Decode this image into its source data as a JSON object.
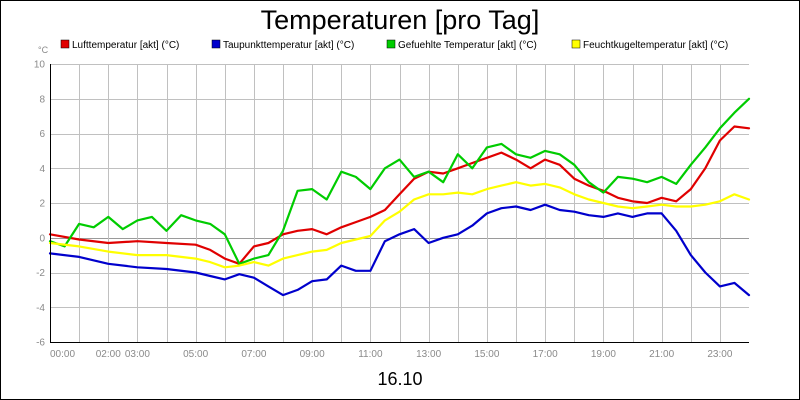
{
  "chart_data": {
    "type": "line",
    "title": "Temperaturen [pro Tag]",
    "y_unit": "°C",
    "date_label": "16.10",
    "ylim": [
      -6,
      10
    ],
    "xlim": [
      0,
      24
    ],
    "y_ticks": [
      -6,
      -4,
      -2,
      0,
      2,
      4,
      6,
      8,
      10
    ],
    "y_tick_labels": [
      "-6",
      "-4",
      "-2",
      "0",
      "2",
      "4",
      "6",
      "8",
      "10"
    ],
    "x_ticks": [
      0,
      2,
      3,
      5,
      7,
      9,
      11,
      13,
      15,
      17,
      19,
      21,
      23
    ],
    "x_tick_labels": [
      "00:00",
      "02:00",
      "03:00",
      "05:00",
      "07:00",
      "09:00",
      "11:00",
      "13:00",
      "15:00",
      "17:00",
      "19:00",
      "21:00",
      "23:00"
    ],
    "grid": true,
    "legend_position": "top",
    "series": [
      {
        "name": "Lufttemperatur [akt] (°C)",
        "color": "#e00000",
        "x": [
          0,
          1,
          2,
          3,
          4,
          5,
          5.5,
          6,
          6.5,
          7,
          7.5,
          8,
          8.5,
          9,
          9.5,
          10,
          10.5,
          11,
          11.5,
          12,
          12.5,
          13,
          13.5,
          14,
          14.5,
          15,
          15.5,
          16,
          16.5,
          17,
          17.5,
          18,
          18.5,
          19,
          19.5,
          20,
          20.5,
          21,
          21.5,
          22,
          22.5,
          23,
          23.5,
          24
        ],
        "y": [
          0.2,
          -0.1,
          -0.3,
          -0.2,
          -0.3,
          -0.4,
          -0.7,
          -1.2,
          -1.5,
          -0.5,
          -0.3,
          0.2,
          0.4,
          0.5,
          0.2,
          0.6,
          0.9,
          1.2,
          1.6,
          2.5,
          3.4,
          3.8,
          3.7,
          4.0,
          4.3,
          4.6,
          4.9,
          4.5,
          4.0,
          4.5,
          4.2,
          3.4,
          3.0,
          2.7,
          2.3,
          2.1,
          2.0,
          2.3,
          2.1,
          2.8,
          4.0,
          5.6,
          6.4,
          6.3
        ]
      },
      {
        "name": "Taupunkttemperatur [akt] (°C)",
        "color": "#0000cc",
        "x": [
          0,
          1,
          2,
          3,
          4,
          5,
          5.5,
          6,
          6.5,
          7,
          7.5,
          8,
          8.5,
          9,
          9.5,
          10,
          10.5,
          11,
          11.5,
          12,
          12.5,
          13,
          13.5,
          14,
          14.5,
          15,
          15.5,
          16,
          16.5,
          17,
          17.5,
          18,
          18.5,
          19,
          19.5,
          20,
          20.5,
          21,
          21.5,
          22,
          22.5,
          23,
          23.5,
          24
        ],
        "y": [
          -0.9,
          -1.1,
          -1.5,
          -1.7,
          -1.8,
          -2.0,
          -2.2,
          -2.4,
          -2.1,
          -2.3,
          -2.8,
          -3.3,
          -3.0,
          -2.5,
          -2.4,
          -1.6,
          -1.9,
          -1.9,
          -0.2,
          0.2,
          0.5,
          -0.3,
          0.0,
          0.2,
          0.7,
          1.4,
          1.7,
          1.8,
          1.6,
          1.9,
          1.6,
          1.5,
          1.3,
          1.2,
          1.4,
          1.2,
          1.4,
          1.4,
          0.4,
          -1.0,
          -2.0,
          -2.8,
          -2.6,
          -3.3
        ]
      },
      {
        "name": "Gefuehlte Temperatur [akt] (°C)",
        "color": "#00cc00",
        "x": [
          0,
          0.5,
          1,
          1.5,
          2,
          2.5,
          3,
          3.5,
          4,
          4.5,
          5,
          5.5,
          6,
          6.5,
          7,
          7.5,
          8,
          8.5,
          9,
          9.5,
          10,
          10.5,
          11,
          11.5,
          12,
          12.5,
          13,
          13.5,
          14,
          14.5,
          15,
          15.5,
          16,
          16.5,
          17,
          17.5,
          18,
          18.5,
          19,
          19.5,
          20,
          20.5,
          21,
          21.5,
          22,
          22.5,
          23,
          23.5,
          24
        ],
        "y": [
          -0.2,
          -0.5,
          0.8,
          0.6,
          1.2,
          0.5,
          1.0,
          1.2,
          0.4,
          1.3,
          1.0,
          0.8,
          0.2,
          -1.5,
          -1.2,
          -1.0,
          0.4,
          2.7,
          2.8,
          2.2,
          3.8,
          3.5,
          2.8,
          4.0,
          4.5,
          3.5,
          3.8,
          3.2,
          4.8,
          4.0,
          5.2,
          5.4,
          4.8,
          4.6,
          5.0,
          4.8,
          4.2,
          3.2,
          2.6,
          3.5,
          3.4,
          3.2,
          3.5,
          3.1,
          4.2,
          5.2,
          6.3,
          7.2,
          8.0
        ]
      },
      {
        "name": "Feuchtkugeltemperatur [akt] (°C)",
        "color": "#ffff00",
        "x": [
          0,
          1,
          2,
          3,
          4,
          5,
          5.5,
          6,
          6.5,
          7,
          7.5,
          8,
          8.5,
          9,
          9.5,
          10,
          10.5,
          11,
          11.5,
          12,
          12.5,
          13,
          13.5,
          14,
          14.5,
          15,
          15.5,
          16,
          16.5,
          17,
          17.5,
          18,
          18.5,
          19,
          19.5,
          20,
          20.5,
          21,
          21.5,
          22,
          22.5,
          23,
          23.5,
          24
        ],
        "y": [
          -0.3,
          -0.5,
          -0.8,
          -1.0,
          -1.0,
          -1.2,
          -1.4,
          -1.7,
          -1.6,
          -1.4,
          -1.6,
          -1.2,
          -1.0,
          -0.8,
          -0.7,
          -0.3,
          -0.1,
          0.1,
          1.0,
          1.5,
          2.2,
          2.5,
          2.5,
          2.6,
          2.5,
          2.8,
          3.0,
          3.2,
          3.0,
          3.1,
          2.9,
          2.5,
          2.2,
          2.0,
          1.8,
          1.7,
          1.8,
          1.9,
          1.8,
          1.8,
          1.9,
          2.1,
          2.5,
          2.2
        ]
      }
    ]
  }
}
